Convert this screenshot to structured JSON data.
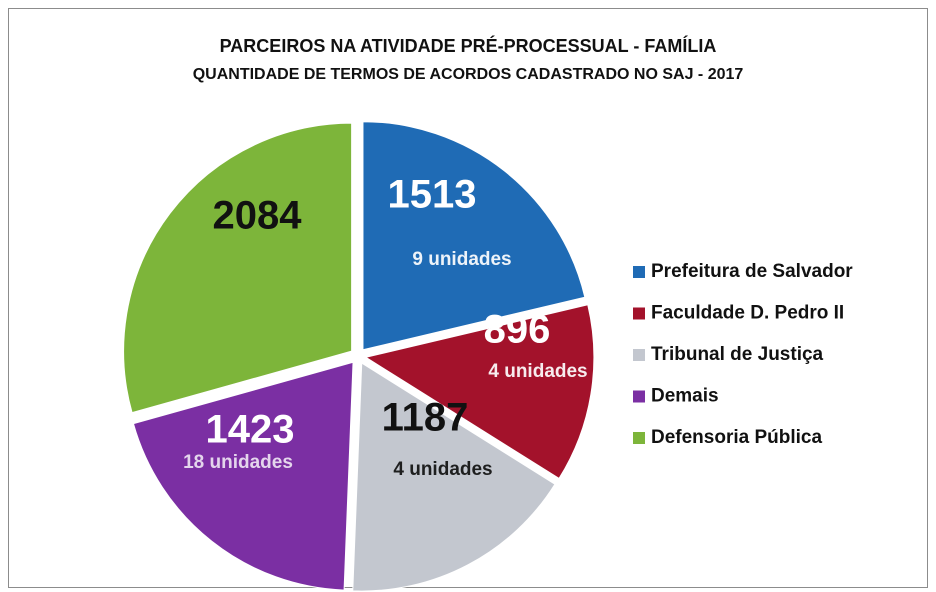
{
  "chart_data": {
    "type": "pie",
    "title": "PARCEIROS NA ATIVIDADE PRÉ-PROCESSUAL - FAMÍLIA",
    "subtitle": "QUANTIDADE DE TERMOS DE ACORDOS CADASTRADO NO SAJ - 2017",
    "categories": [
      "Prefeitura de Salvador",
      "Faculdade D. Pedro II",
      "Tribunal de Justiça",
      "Demais",
      "Defensoria Pública"
    ],
    "values": [
      1513,
      896,
      1187,
      1423,
      2084
    ],
    "colors": [
      "#1f6bb5",
      "#a3122b",
      "#c3c7cf",
      "#7b2fa3",
      "#7db53a"
    ],
    "unit_labels": [
      "9 unidades",
      "4 unidades",
      "4 unidades",
      "18 unidades",
      null
    ],
    "label_colors": [
      "#ffffff",
      "#ffffff",
      "#111111",
      "#ffffff",
      "#111111"
    ],
    "legend": "right"
  }
}
